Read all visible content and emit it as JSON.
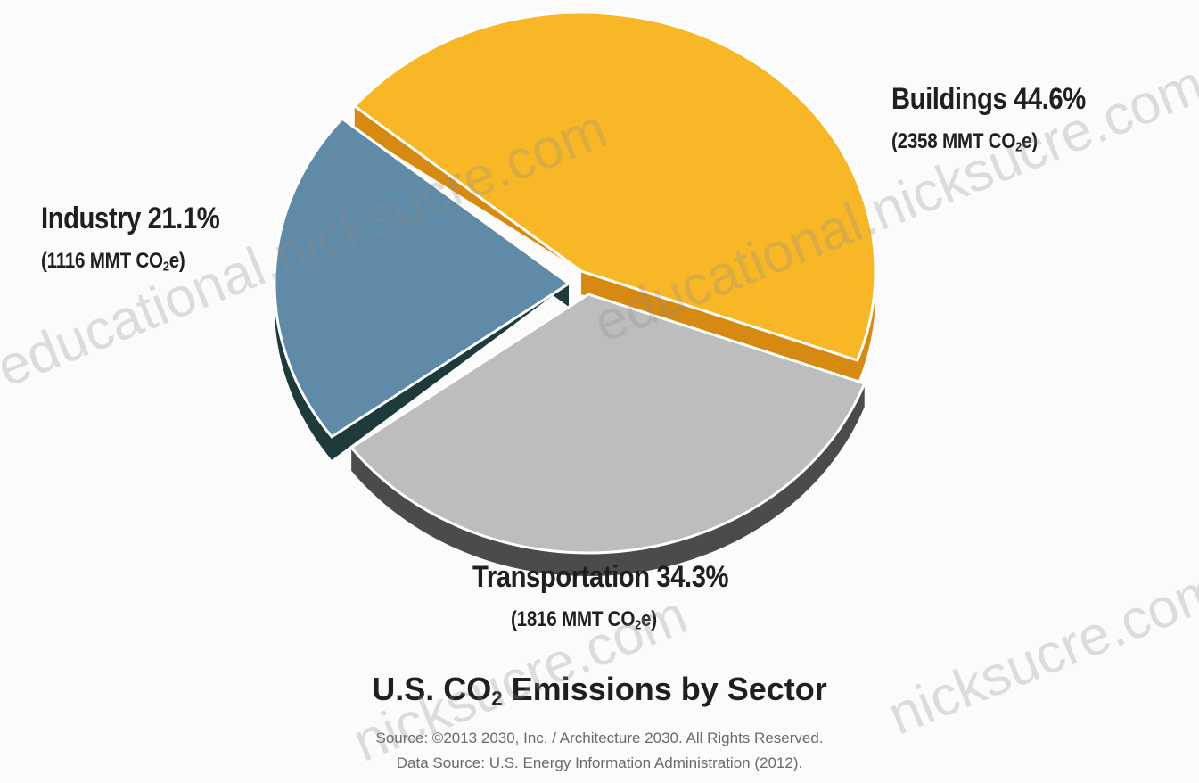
{
  "chart_data": {
    "type": "pie",
    "title": "U.S. CO2 Emissions by Sector",
    "slices": [
      {
        "name": "Buildings",
        "percent": 44.6,
        "value_text": "2358 MMT CO",
        "value_unit": "e",
        "color": "#f7b726",
        "side_color": "#d78a12"
      },
      {
        "name": "Transportation",
        "percent": 34.3,
        "value_text": "1816 MMT CO",
        "value_unit": "e",
        "color": "#bdbdbd",
        "side_color": "#4b4b4b"
      },
      {
        "name": "Industry",
        "percent": 21.1,
        "value_text": "1116 MMT CO",
        "value_unit": "e",
        "color": "#5f8aa8",
        "side_color": "#1f3a3a"
      }
    ],
    "source": "Source: ©2013 2030, Inc. / Architecture 2030. All Rights Reserved.",
    "data_source": "Data Source: U.S. Energy Information Administration (2012)."
  },
  "labels": {
    "buildings": {
      "name": "Buildings 44.6%",
      "pre": "(2358 MMT CO",
      "sub": "2",
      "post": "e)"
    },
    "industry": {
      "name": "Industry 21.1%",
      "pre": "(1116 MMT CO",
      "sub": "2",
      "post": "e)"
    },
    "transportation": {
      "name": "Transportation 34.3%",
      "pre": "(1816 MMT CO",
      "sub": "2",
      "post": "e)"
    }
  },
  "title": {
    "pre": "U.S. CO",
    "sub": "2",
    "post": " Emissions by Sector"
  },
  "source_line": "Source: ©2013 2030, Inc. / Architecture 2030. All Rights Reserved.",
  "data_source_line": "Data Source: U.S. Energy Information Administration (2012).",
  "watermarks": [
    "educational.nicksucre.com",
    "educational.nicksucre.com",
    "nicksucre.com",
    "nicksucre.com"
  ]
}
